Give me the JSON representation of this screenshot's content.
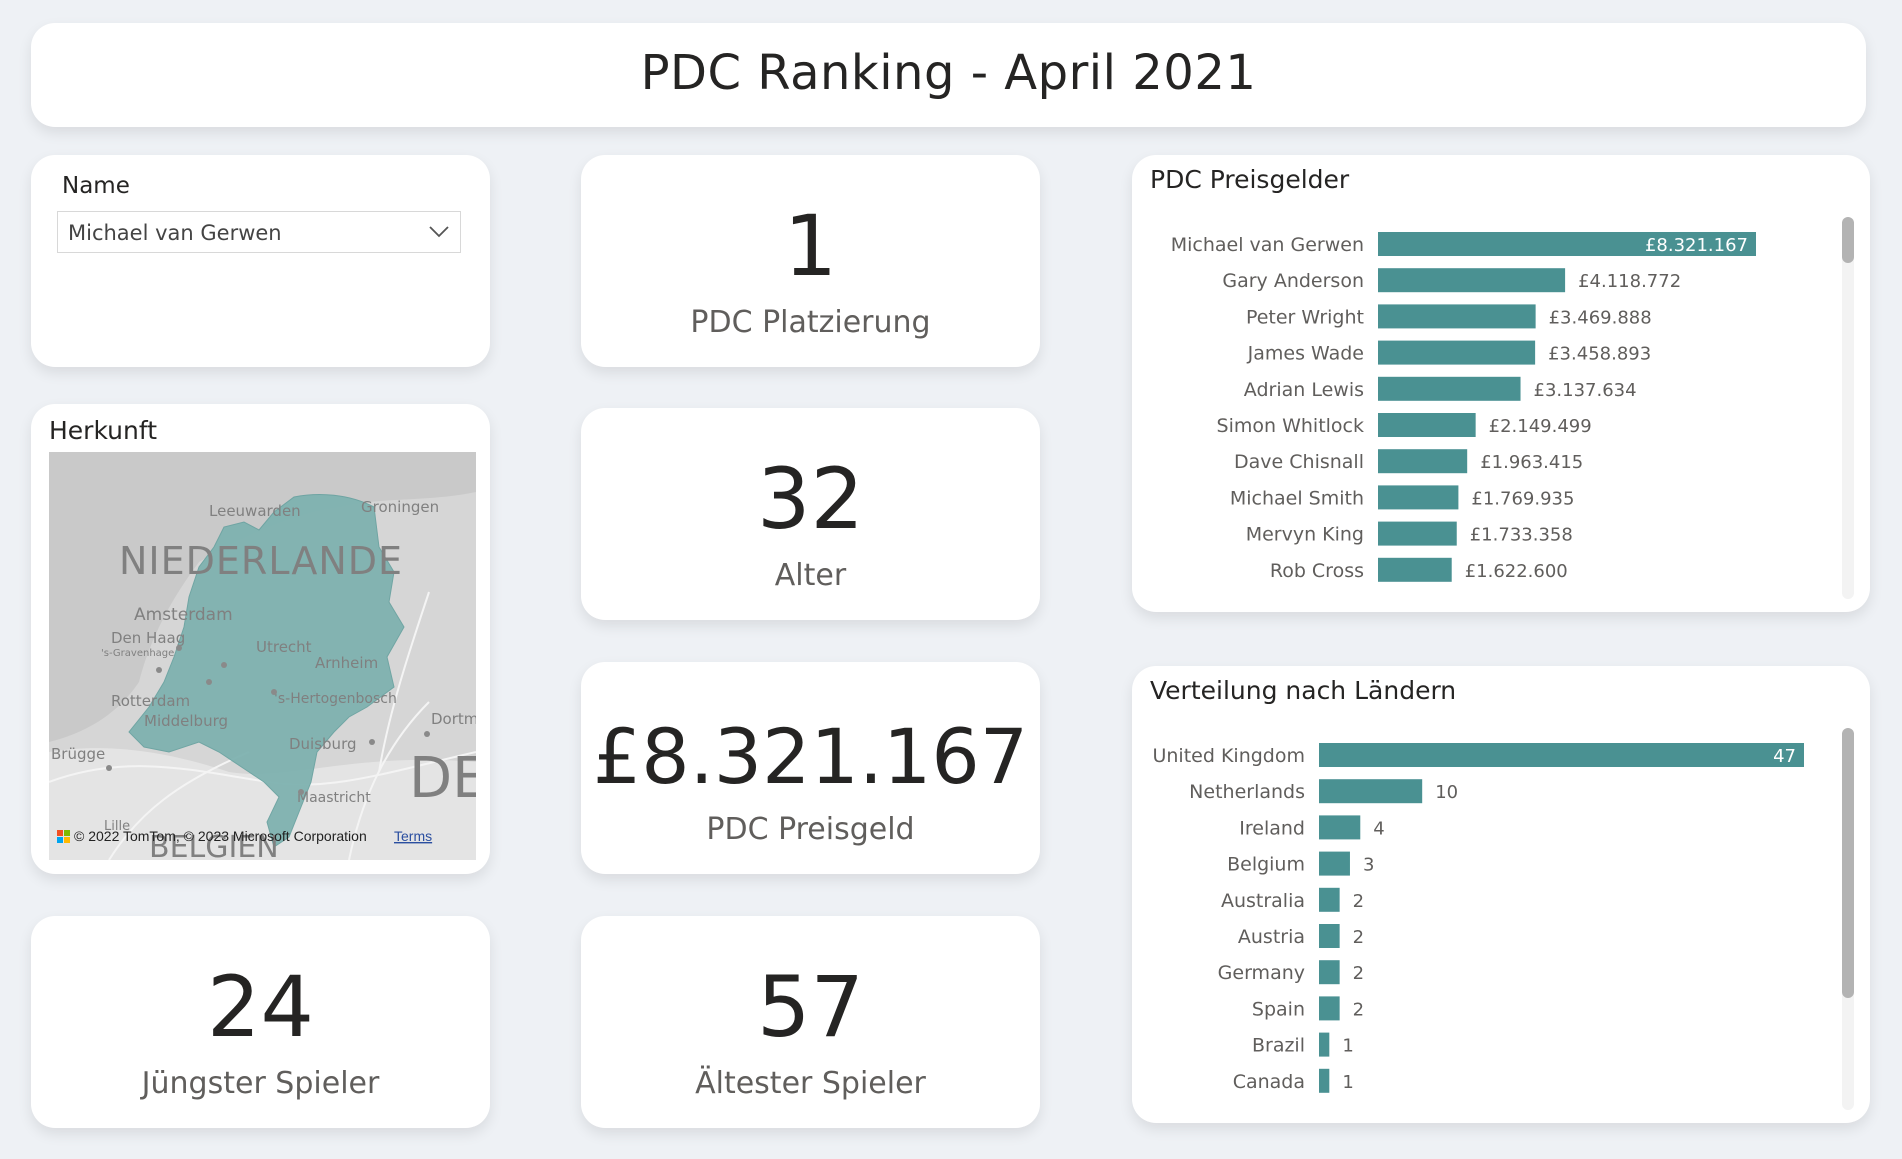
{
  "header": {
    "title": "PDC Ranking  - April 2021"
  },
  "slicer": {
    "label": "Name",
    "selected": "Michael van Gerwen",
    "icon": "chevron-down-icon"
  },
  "map": {
    "title": "Herkunft",
    "country_label": "NIEDERLANDE",
    "cities": [
      "Leeuwarden",
      "Groningen",
      "Amsterdam",
      "Den Haag",
      "'s-Gravenhage",
      "Utrecht",
      "Arnheim",
      "Rotterdam",
      "'s-Hertogenbosch",
      "Middelburg",
      "Duisburg",
      "Dortm",
      "Brügge",
      "Maastricht",
      "Lille"
    ],
    "neighbor_labels": [
      "DE",
      "BELGIEN"
    ],
    "attribution": "© 2022 TomTom, © 2023 Microsoft Corporation",
    "terms_link": "Terms",
    "colors": {
      "land": "#d9d9d9",
      "highlight": "#7fb2b0",
      "road": "#ffffff"
    }
  },
  "kpis": {
    "rank": {
      "value": "1",
      "label": "PDC Platzierung"
    },
    "age": {
      "value": "32",
      "label": "Alter"
    },
    "prize": {
      "value": "£8.321.167",
      "label": "PDC Preisgeld"
    },
    "youngest": {
      "value": "24",
      "label": "Jüngster Spieler"
    },
    "oldest": {
      "value": "57",
      "label": "Ältester Spieler"
    }
  },
  "chart_data": [
    {
      "type": "bar",
      "orientation": "horizontal",
      "title": "PDC Preisgelder",
      "categories": [
        "Michael van Gerwen",
        "Gary Anderson",
        "Peter Wright",
        "James Wade",
        "Adrian Lewis",
        "Simon Whitlock",
        "Dave Chisnall",
        "Michael Smith",
        "Mervyn King",
        "Rob Cross"
      ],
      "values": [
        8321167,
        4118772,
        3469888,
        3458893,
        3137634,
        2149499,
        1963415,
        1769935,
        1733358,
        1622600
      ],
      "labels": [
        "£8.321.167",
        "£4.118.772",
        "£3.469.888",
        "£3.458.893",
        "£3.137.634",
        "£2.149.499",
        "£1.963.415",
        "£1.769.935",
        "£1.733.358",
        "£1.622.600"
      ],
      "xlim": [
        0,
        8321167
      ],
      "color": "#4a9192",
      "grid": false,
      "legend": "none"
    },
    {
      "type": "bar",
      "orientation": "horizontal",
      "title": "Verteilung nach Ländern",
      "categories": [
        "United Kingdom",
        "Netherlands",
        "Ireland",
        "Belgium",
        "Australia",
        "Austria",
        "Germany",
        "Spain",
        "Brazil",
        "Canada"
      ],
      "values": [
        47,
        10,
        4,
        3,
        2,
        2,
        2,
        2,
        1,
        1
      ],
      "labels": [
        "47",
        "10",
        "4",
        "3",
        "2",
        "2",
        "2",
        "2",
        "1",
        "1"
      ],
      "xlim": [
        0,
        47
      ],
      "color": "#4a9192",
      "grid": false,
      "legend": "none"
    }
  ]
}
